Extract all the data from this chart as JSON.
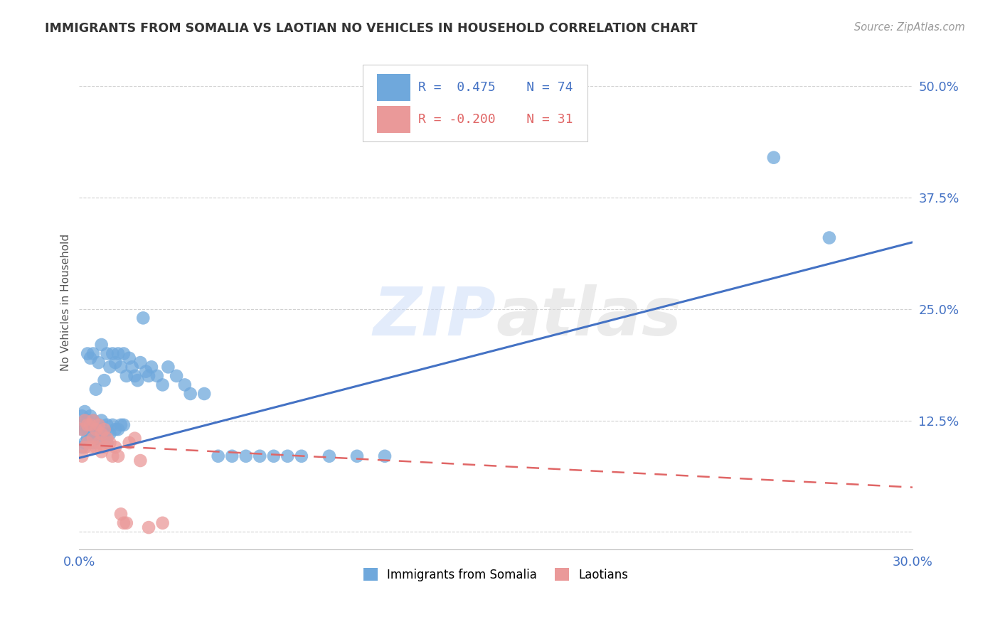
{
  "title": "IMMIGRANTS FROM SOMALIA VS LAOTIAN NO VEHICLES IN HOUSEHOLD CORRELATION CHART",
  "source": "Source: ZipAtlas.com",
  "ylabel_label": "No Vehicles in Household",
  "xlim": [
    0.0,
    0.3
  ],
  "ylim": [
    -0.02,
    0.535
  ],
  "somalia_R": 0.475,
  "somalia_N": 74,
  "laotian_R": -0.2,
  "laotian_N": 31,
  "somalia_color": "#6fa8dc",
  "laotian_color": "#ea9999",
  "somalia_line_color": "#4472c4",
  "laotian_line_color": "#e06666",
  "legend_somalia": "Immigrants from Somalia",
  "legend_laotian": "Laotians",
  "somalia_line_x0": 0.0,
  "somalia_line_y0": 0.083,
  "somalia_line_x1": 0.3,
  "somalia_line_y1": 0.325,
  "laotian_line_x0": 0.0,
  "laotian_line_y0": 0.098,
  "laotian_line_x1": 0.3,
  "laotian_line_y1": 0.05,
  "somalia_points_x": [
    0.001,
    0.001,
    0.001,
    0.002,
    0.002,
    0.002,
    0.002,
    0.003,
    0.003,
    0.003,
    0.003,
    0.004,
    0.004,
    0.004,
    0.004,
    0.005,
    0.005,
    0.005,
    0.005,
    0.006,
    0.006,
    0.006,
    0.007,
    0.007,
    0.007,
    0.008,
    0.008,
    0.008,
    0.009,
    0.009,
    0.01,
    0.01,
    0.01,
    0.011,
    0.011,
    0.012,
    0.012,
    0.013,
    0.013,
    0.014,
    0.014,
    0.015,
    0.015,
    0.016,
    0.016,
    0.017,
    0.018,
    0.019,
    0.02,
    0.021,
    0.022,
    0.023,
    0.024,
    0.025,
    0.026,
    0.028,
    0.03,
    0.032,
    0.035,
    0.038,
    0.04,
    0.045,
    0.05,
    0.055,
    0.06,
    0.065,
    0.07,
    0.075,
    0.08,
    0.09,
    0.1,
    0.11,
    0.25,
    0.27
  ],
  "somalia_points_y": [
    0.095,
    0.115,
    0.13,
    0.1,
    0.115,
    0.125,
    0.135,
    0.105,
    0.115,
    0.125,
    0.2,
    0.11,
    0.12,
    0.13,
    0.195,
    0.1,
    0.115,
    0.125,
    0.2,
    0.105,
    0.115,
    0.16,
    0.11,
    0.12,
    0.19,
    0.115,
    0.125,
    0.21,
    0.11,
    0.17,
    0.1,
    0.12,
    0.2,
    0.11,
    0.185,
    0.12,
    0.2,
    0.115,
    0.19,
    0.115,
    0.2,
    0.12,
    0.185,
    0.12,
    0.2,
    0.175,
    0.195,
    0.185,
    0.175,
    0.17,
    0.19,
    0.24,
    0.18,
    0.175,
    0.185,
    0.175,
    0.165,
    0.185,
    0.175,
    0.165,
    0.155,
    0.155,
    0.085,
    0.085,
    0.085,
    0.085,
    0.085,
    0.085,
    0.085,
    0.085,
    0.085,
    0.085,
    0.42,
    0.33
  ],
  "laotian_points_x": [
    0.001,
    0.001,
    0.002,
    0.002,
    0.003,
    0.003,
    0.004,
    0.004,
    0.005,
    0.005,
    0.006,
    0.006,
    0.007,
    0.007,
    0.008,
    0.008,
    0.009,
    0.009,
    0.01,
    0.011,
    0.012,
    0.013,
    0.014,
    0.015,
    0.016,
    0.017,
    0.018,
    0.02,
    0.022,
    0.025,
    0.03
  ],
  "laotian_points_y": [
    0.085,
    0.115,
    0.095,
    0.125,
    0.1,
    0.12,
    0.095,
    0.12,
    0.105,
    0.125,
    0.095,
    0.115,
    0.1,
    0.12,
    0.09,
    0.11,
    0.095,
    0.115,
    0.105,
    0.1,
    0.085,
    0.095,
    0.085,
    0.02,
    0.01,
    0.01,
    0.1,
    0.105,
    0.08,
    0.005,
    0.01
  ]
}
